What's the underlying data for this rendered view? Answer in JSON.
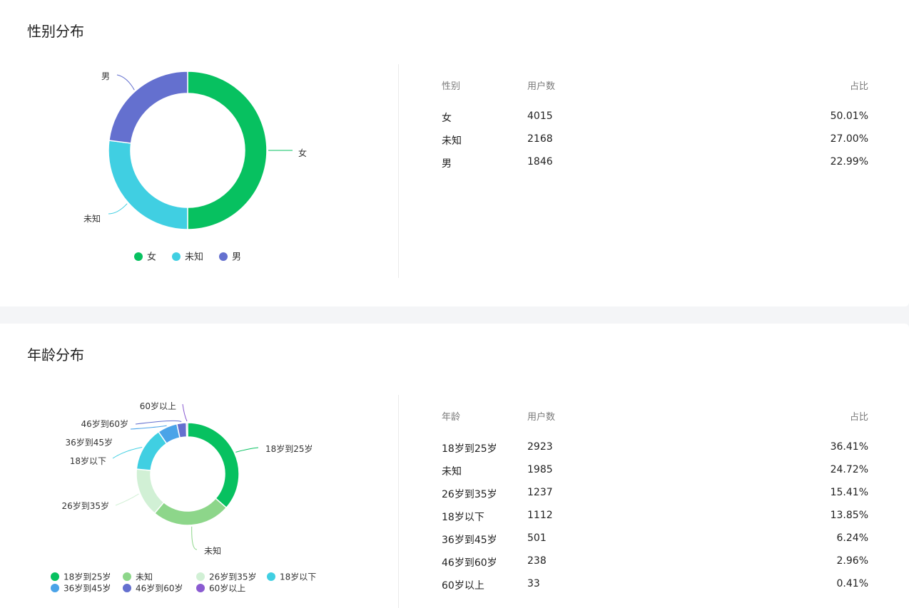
{
  "gender": {
    "title": "性别分布",
    "table_headers": [
      "性别",
      "用户数",
      "占比"
    ],
    "rows": [
      {
        "label": "女",
        "count": "4015",
        "pct": "50.01%"
      },
      {
        "label": "未知",
        "count": "2168",
        "pct": "27.00%"
      },
      {
        "label": "男",
        "count": "1846",
        "pct": "22.99%"
      }
    ]
  },
  "age": {
    "title": "年龄分布",
    "table_headers": [
      "年龄",
      "用户数",
      "占比"
    ],
    "rows": [
      {
        "label": "18岁到25岁",
        "count": "2923",
        "pct": "36.41%"
      },
      {
        "label": "未知",
        "count": "1985",
        "pct": "24.72%"
      },
      {
        "label": "26岁到35岁",
        "count": "1237",
        "pct": "15.41%"
      },
      {
        "label": "18岁以下",
        "count": "1112",
        "pct": "13.85%"
      },
      {
        "label": "36岁到45岁",
        "count": "501",
        "pct": "6.24%"
      },
      {
        "label": "46岁到60岁",
        "count": "238",
        "pct": "2.96%"
      },
      {
        "label": "60岁以上",
        "count": "33",
        "pct": "0.41%"
      }
    ]
  },
  "chart_data": [
    {
      "type": "pie",
      "variant": "donut",
      "categories": [
        "女",
        "未知",
        "男"
      ],
      "values": [
        4015,
        2168,
        1846
      ],
      "colors": [
        "#07c160",
        "#40cfe2",
        "#6470cf"
      ],
      "legend_position": "bottom"
    },
    {
      "type": "pie",
      "variant": "donut",
      "categories": [
        "18岁到25岁",
        "未知",
        "26岁到35岁",
        "18岁以下",
        "36岁到45岁",
        "46岁到60岁",
        "60岁以上"
      ],
      "values": [
        2923,
        1985,
        1237,
        1112,
        501,
        238,
        33
      ],
      "colors": [
        "#07c160",
        "#8dd68a",
        "#d1f0d5",
        "#40cfe2",
        "#4aa3e8",
        "#6470cf",
        "#8a5bd1"
      ],
      "legend_position": "bottom"
    }
  ]
}
